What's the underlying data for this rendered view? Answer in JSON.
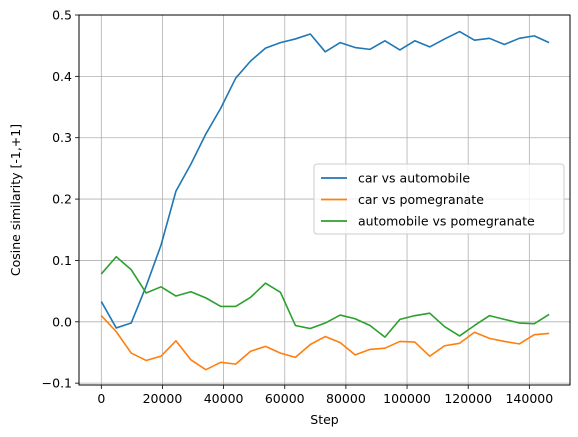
{
  "chart_data": {
    "type": "line",
    "title": "",
    "xlabel": "Step",
    "ylabel": "Cosine similarity [-1,+1]",
    "xlim": [
      -7300,
      153300
    ],
    "ylim": [
      -0.103,
      0.5
    ],
    "xticks": [
      0,
      20000,
      40000,
      60000,
      80000,
      100000,
      120000,
      140000
    ],
    "yticks": [
      -0.1,
      0.0,
      0.1,
      0.2,
      0.3,
      0.4,
      0.5
    ],
    "xtick_labels": [
      "0",
      "20000",
      "40000",
      "60000",
      "80000",
      "100000",
      "120000",
      "140000"
    ],
    "ytick_labels": [
      "−0.1",
      "0.0",
      "0.1",
      "0.2",
      "0.3",
      "0.4",
      "0.5"
    ],
    "grid": true,
    "legend_position": "center-right",
    "x": [
      0,
      4880,
      9770,
      14650,
      19530,
      24410,
      29300,
      34180,
      39060,
      43950,
      48830,
      53710,
      58590,
      63480,
      68360,
      73240,
      78130,
      83010,
      87890,
      92770,
      97660,
      102540,
      107420,
      112300,
      117190,
      122070,
      126950,
      131840,
      136720,
      141600,
      146480
    ],
    "series": [
      {
        "name": "car vs automobile",
        "color": "#1f77b4",
        "values": [
          0.033,
          -0.01,
          -0.002,
          0.058,
          0.125,
          0.213,
          0.257,
          0.306,
          0.348,
          0.397,
          0.425,
          0.446,
          0.455,
          0.461,
          0.469,
          0.44,
          0.455,
          0.447,
          0.444,
          0.458,
          0.443,
          0.458,
          0.448,
          0.461,
          0.473,
          0.459,
          0.462,
          0.452,
          0.462,
          0.466,
          0.455
        ]
      },
      {
        "name": "car vs pomegranate",
        "color": "#ff7f0e",
        "values": [
          0.01,
          -0.016,
          -0.051,
          -0.063,
          -0.056,
          -0.031,
          -0.062,
          -0.078,
          -0.066,
          -0.069,
          -0.048,
          -0.04,
          -0.051,
          -0.058,
          -0.037,
          -0.024,
          -0.034,
          -0.054,
          -0.045,
          -0.043,
          -0.032,
          -0.033,
          -0.056,
          -0.039,
          -0.035,
          -0.017,
          -0.027,
          -0.032,
          -0.036,
          -0.021,
          -0.019
        ]
      },
      {
        "name": "automobile vs pomegranate",
        "color": "#2ca02c",
        "values": [
          0.078,
          0.106,
          0.085,
          0.047,
          0.057,
          0.042,
          0.049,
          0.039,
          0.025,
          0.025,
          0.04,
          0.063,
          0.048,
          -0.006,
          -0.011,
          -0.002,
          0.011,
          0.005,
          -0.006,
          -0.025,
          0.004,
          0.01,
          0.014,
          -0.008,
          -0.023,
          -0.006,
          0.01,
          0.004,
          -0.002,
          -0.003,
          0.012
        ]
      }
    ]
  }
}
